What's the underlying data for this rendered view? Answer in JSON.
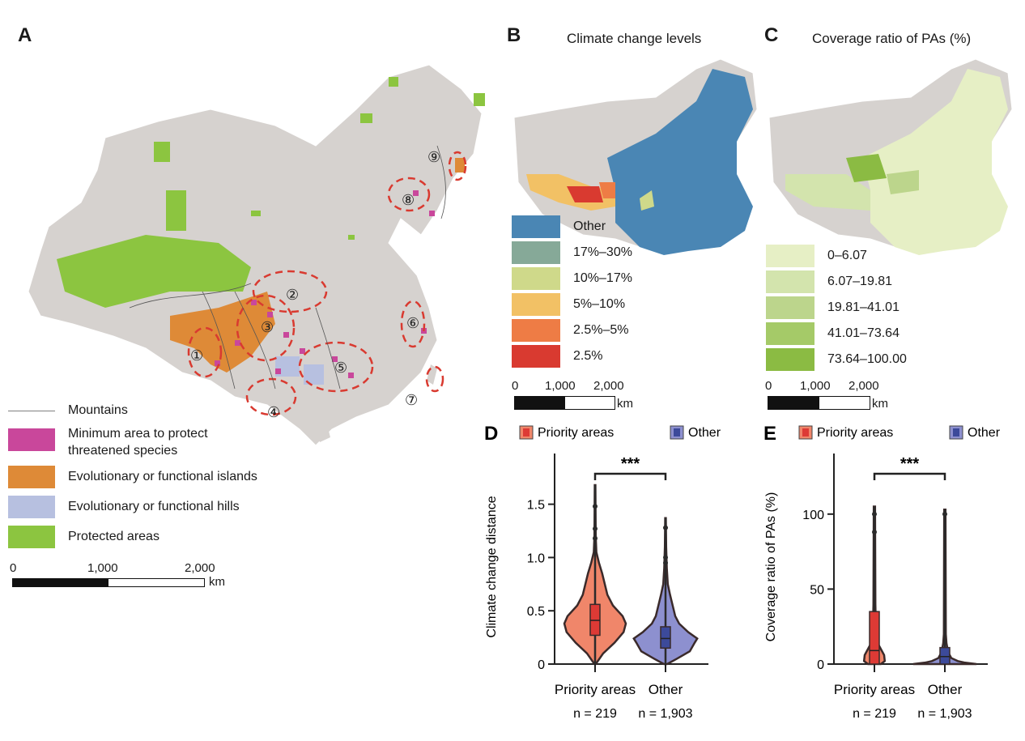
{
  "panels": {
    "A": {
      "letter": "A",
      "legend": [
        {
          "key": "mountains",
          "label": "Mountains",
          "type": "line",
          "color": "#808080"
        },
        {
          "key": "min-area",
          "label": "Minimum area to protect",
          "label2": "threatened species",
          "type": "fill",
          "color": "#c9479b"
        },
        {
          "key": "islands",
          "label": "Evolutionary or functional islands",
          "type": "fill",
          "color": "#de8a37"
        },
        {
          "key": "hills",
          "label": "Evolutionary or functional hills",
          "type": "fill",
          "color": "#b7c0e0"
        },
        {
          "key": "protected",
          "label": "Protected areas",
          "type": "fill",
          "color": "#8cc540"
        }
      ],
      "scale": {
        "ticks": [
          "0",
          "1,000",
          "2,000"
        ],
        "unit": "km"
      },
      "regions": [
        "①",
        "②",
        "③",
        "④",
        "⑤",
        "⑥",
        "⑦",
        "⑧",
        "⑨"
      ]
    },
    "B": {
      "letter": "B",
      "title": "Climate change levels",
      "legend": [
        {
          "label": "Other",
          "color": "#4a86b4"
        },
        {
          "label": "17%–30%",
          "color": "#86a998"
        },
        {
          "label": "10%–17%",
          "color": "#cfd98a"
        },
        {
          "label": "5%–10%",
          "color": "#f2c165"
        },
        {
          "label": "2.5%–5%",
          "color": "#ee7c45"
        },
        {
          "label": "2.5%",
          "color": "#d93a30"
        }
      ],
      "scale": {
        "ticks": [
          "0",
          "1,000",
          "2,000"
        ],
        "unit": "km"
      }
    },
    "C": {
      "letter": "C",
      "title": "Coverage ratio of PAs (%)",
      "legend": [
        {
          "label": "0–6.07",
          "color": "#e6efc5"
        },
        {
          "label": "6.07–19.81",
          "color": "#d3e4ad"
        },
        {
          "label": "19.81–41.01",
          "color": "#bcd58c"
        },
        {
          "label": "41.01–73.64",
          "color": "#a5ca68"
        },
        {
          "label": "73.64–100.00",
          "color": "#8bbb43"
        }
      ],
      "scale": {
        "ticks": [
          "0",
          "1,000",
          "2,000"
        ],
        "unit": "km"
      }
    }
  },
  "chart_data": [
    {
      "panel": "D",
      "type": "violin",
      "legend": [
        {
          "label": "Priority areas",
          "color": "#f0866a",
          "box": "#dd3a35"
        },
        {
          "label": "Other",
          "color": "#8d90cf",
          "box": "#3c4a9a"
        }
      ],
      "ylabel": "Climate change distance",
      "ylim": [
        0,
        1.9
      ],
      "yticks": [
        0,
        0.5,
        1.0,
        1.5
      ],
      "ytick_labels": [
        "0",
        "0.5",
        "1.0",
        "1.5"
      ],
      "categories": [
        "Priority areas",
        "Other"
      ],
      "n_labels": [
        "n = 219",
        "n = 1,903"
      ],
      "significance": "***",
      "series": [
        {
          "name": "Priority areas",
          "q1": 0.27,
          "median": 0.41,
          "q3": 0.56,
          "min": 0.0,
          "max": 1.68,
          "outliers": [
            1.48,
            1.27,
            1.18
          ],
          "density": [
            [
              0,
              0.02
            ],
            [
              0.1,
              0.25
            ],
            [
              0.2,
              0.6
            ],
            [
              0.3,
              0.88
            ],
            [
              0.38,
              0.95
            ],
            [
              0.45,
              0.85
            ],
            [
              0.55,
              0.55
            ],
            [
              0.65,
              0.38
            ],
            [
              0.75,
              0.3
            ],
            [
              0.85,
              0.22
            ],
            [
              0.95,
              0.12
            ],
            [
              1.05,
              0.04
            ],
            [
              1.2,
              0.02
            ],
            [
              1.68,
              0.01
            ]
          ]
        },
        {
          "name": "Other",
          "q1": 0.15,
          "median": 0.24,
          "q3": 0.35,
          "min": 0.0,
          "max": 1.37,
          "outliers": [
            1.28,
            1.0,
            0.95
          ],
          "density": [
            [
              0,
              0.05
            ],
            [
              0.05,
              0.35
            ],
            [
              0.12,
              0.75
            ],
            [
              0.2,
              0.9
            ],
            [
              0.24,
              0.98
            ],
            [
              0.3,
              0.7
            ],
            [
              0.38,
              0.42
            ],
            [
              0.45,
              0.3
            ],
            [
              0.55,
              0.22
            ],
            [
              0.65,
              0.14
            ],
            [
              0.75,
              0.07
            ],
            [
              0.9,
              0.04
            ],
            [
              1.1,
              0.02
            ],
            [
              1.37,
              0.01
            ]
          ]
        }
      ]
    },
    {
      "panel": "E",
      "type": "violin",
      "legend": [
        {
          "label": "Priority areas",
          "color": "#f0866a",
          "box": "#dd3a35"
        },
        {
          "label": "Other",
          "color": "#8d90cf",
          "box": "#3c4a9a"
        }
      ],
      "ylabel": "Coverage ratio of PAs (%)",
      "ylim": [
        0,
        135
      ],
      "yticks": [
        0,
        50,
        100
      ],
      "ytick_labels": [
        "0",
        "50",
        "100"
      ],
      "categories": [
        "Priority areas",
        "Other"
      ],
      "n_labels": [
        "n = 219",
        "n = 1,903"
      ],
      "significance": "***",
      "series": [
        {
          "name": "Priority areas",
          "q1": 0,
          "median": 9,
          "q3": 35,
          "min": 0,
          "max": 105,
          "outliers": [
            100,
            88
          ],
          "density": [
            [
              0,
              0.2
            ],
            [
              2,
              0.32
            ],
            [
              6,
              0.3
            ],
            [
              10,
              0.2
            ],
            [
              14,
              0.1
            ],
            [
              20,
              0.05
            ],
            [
              40,
              0.03
            ],
            [
              105,
              0.02
            ]
          ]
        },
        {
          "name": "Other",
          "q1": 0,
          "median": 5,
          "q3": 11,
          "min": 0,
          "max": 103,
          "outliers": [
            100
          ],
          "density": [
            [
              0,
              0.98
            ],
            [
              1,
              0.6
            ],
            [
              2,
              0.4
            ],
            [
              4,
              0.2
            ],
            [
              8,
              0.1
            ],
            [
              14,
              0.05
            ],
            [
              20,
              0.03
            ],
            [
              103,
              0.02
            ]
          ]
        }
      ]
    }
  ]
}
